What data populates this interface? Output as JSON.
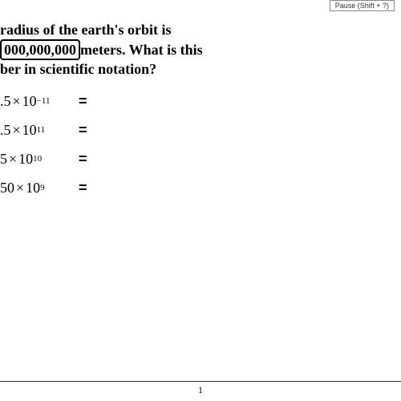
{
  "top_label": "Pause (Shift + ?)",
  "question": {
    "line1_prefix": "radius of the earth's orbit is",
    "boxed_number": "000,000,000",
    "line2_suffix": "meters. What is this",
    "line3": "ber in scientific notation?"
  },
  "options": [
    {
      "coeff": ".5",
      "base": "10",
      "exp": "−11",
      "eq": "="
    },
    {
      "coeff": ".5",
      "base": "10",
      "exp": "11",
      "eq": "="
    },
    {
      "coeff": "5",
      "base": "10",
      "exp": "10",
      "eq": "="
    },
    {
      "coeff": "50",
      "base": "10",
      "exp": "9",
      "eq": "="
    }
  ],
  "page_number": "1",
  "colors": {
    "text": "#000000",
    "background": "#ffffff"
  }
}
